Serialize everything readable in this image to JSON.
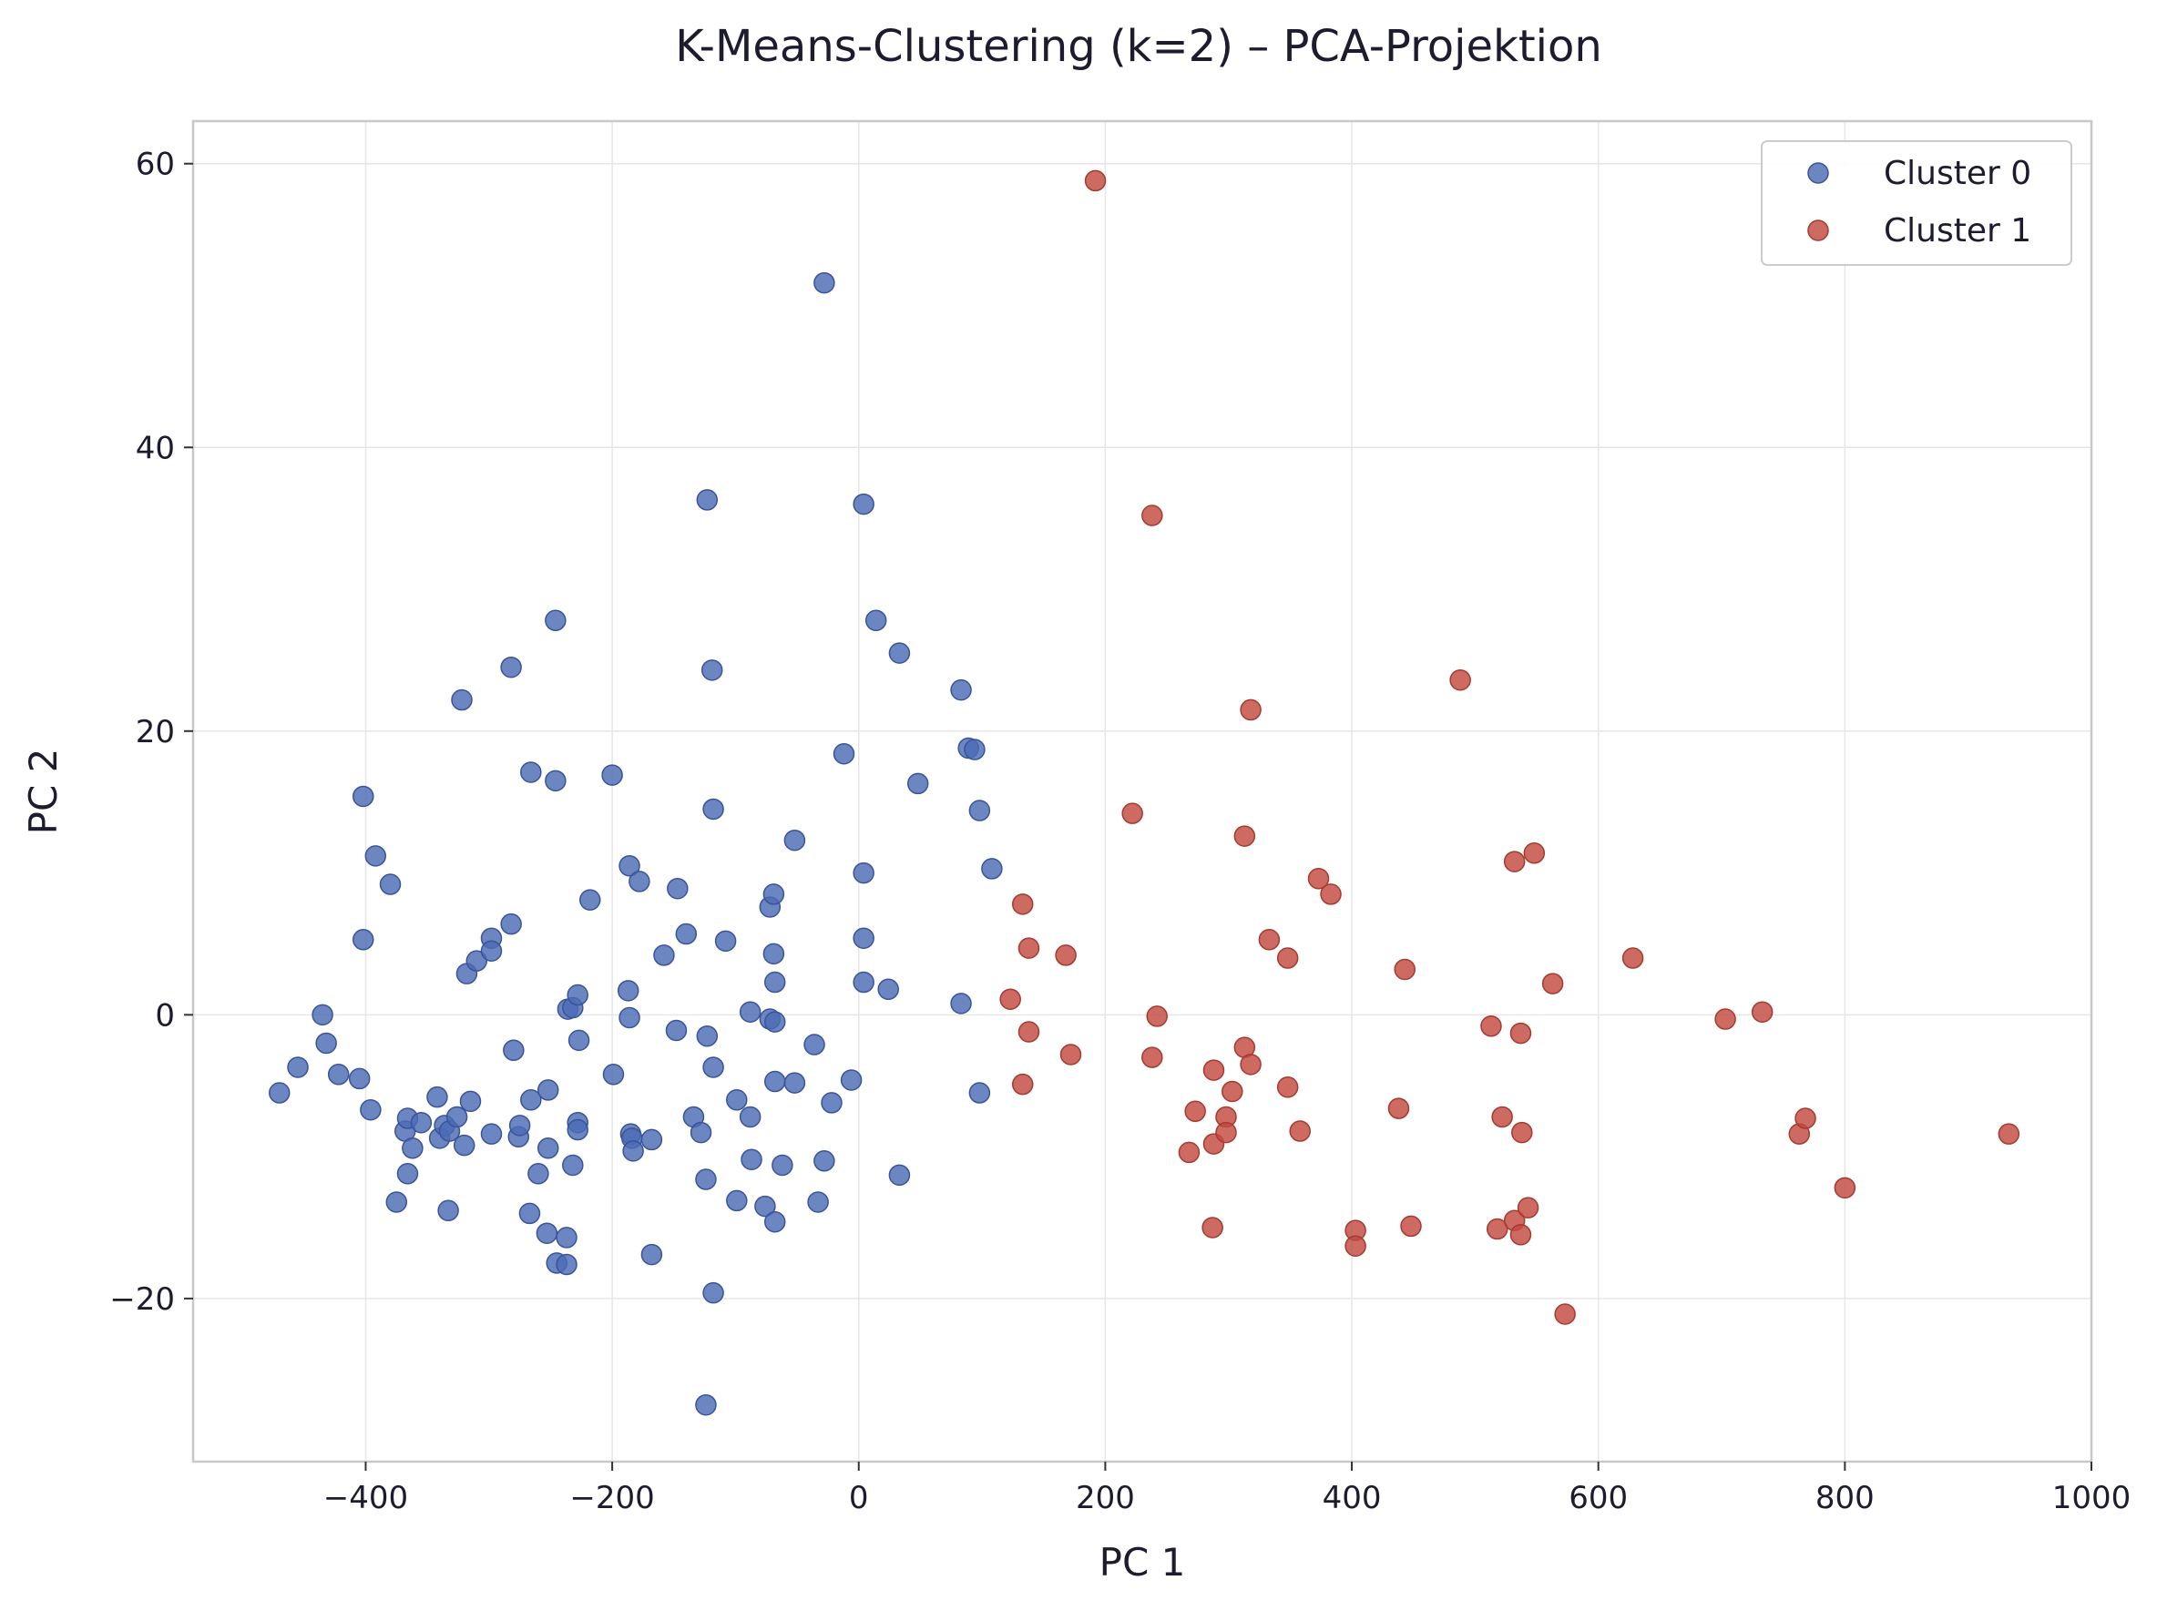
{
  "chart_data": {
    "type": "scatter",
    "title": "K-Means-Clustering (k=2) – PCA-Projektion",
    "xlabel": "PC 1",
    "ylabel": "PC 2",
    "xlim": [
      -540,
      1000
    ],
    "ylim": [
      -31.5,
      63
    ],
    "xticks": [
      -400,
      -200,
      0,
      200,
      400,
      600,
      800,
      1000
    ],
    "yticks": [
      -20,
      0,
      20,
      40,
      60
    ],
    "xtick_labels": [
      "−400",
      "−200",
      "0",
      "200",
      "400",
      "600",
      "800",
      "1000"
    ],
    "ytick_labels": [
      "−20",
      "0",
      "20",
      "40",
      "60"
    ],
    "grid": true,
    "legend_position": "top-right",
    "series": [
      {
        "name": "Cluster 0",
        "color": "#4c6bb4",
        "points": [
          [
            -470,
            -5.5
          ],
          [
            -455,
            -3.7
          ],
          [
            -435,
            0
          ],
          [
            -432,
            -2
          ],
          [
            -422,
            -4.2
          ],
          [
            -405,
            -4.5
          ],
          [
            -402,
            15.4
          ],
          [
            -402,
            5.3
          ],
          [
            -396,
            -6.7
          ],
          [
            -392,
            11.2
          ],
          [
            -380,
            9.2
          ],
          [
            -375,
            -13.2
          ],
          [
            -368,
            -8.2
          ],
          [
            -366,
            -11.2
          ],
          [
            -366,
            -7.3
          ],
          [
            -362,
            -9.4
          ],
          [
            -355,
            -7.6
          ],
          [
            -342,
            -5.8
          ],
          [
            -340,
            -8.7
          ],
          [
            -336,
            -7.8
          ],
          [
            -333,
            -13.8
          ],
          [
            -332,
            -8.2
          ],
          [
            -326,
            -7.2
          ],
          [
            -322,
            22.2
          ],
          [
            -320,
            -9.2
          ],
          [
            -318,
            2.9
          ],
          [
            -315,
            -6.1
          ],
          [
            -310,
            3.8
          ],
          [
            -298,
            5.4
          ],
          [
            -298,
            4.5
          ],
          [
            -298,
            -8.4
          ],
          [
            -282,
            6.4
          ],
          [
            -282,
            24.5
          ],
          [
            -280,
            -2.5
          ],
          [
            -276,
            -8.6
          ],
          [
            -275,
            -7.8
          ],
          [
            -267,
            -14
          ],
          [
            -266,
            -6
          ],
          [
            -266,
            17.1
          ],
          [
            -260,
            -11.2
          ],
          [
            -253,
            -15.4
          ],
          [
            -252,
            -9.4
          ],
          [
            -252,
            -5.3
          ],
          [
            -246,
            27.8
          ],
          [
            -246,
            16.5
          ],
          [
            -245,
            -17.5
          ],
          [
            -237,
            -15.7
          ],
          [
            -237,
            -17.6
          ],
          [
            -236,
            0.4
          ],
          [
            -232,
            0.5
          ],
          [
            -232,
            -10.6
          ],
          [
            -228,
            1.4
          ],
          [
            -228,
            -7.6
          ],
          [
            -228,
            -8.1
          ],
          [
            -227,
            -1.8
          ],
          [
            -218,
            8.1
          ],
          [
            -200,
            16.9
          ],
          [
            -199,
            -4.2
          ],
          [
            -187,
            1.7
          ],
          [
            -186,
            10.5
          ],
          [
            -186,
            -0.2
          ],
          [
            -185,
            -8.4
          ],
          [
            -184,
            -8.7
          ],
          [
            -183,
            -9.6
          ],
          [
            -178,
            9.4
          ],
          [
            -168,
            -8.8
          ],
          [
            -168,
            -16.9
          ],
          [
            -158,
            4.2
          ],
          [
            -148,
            -1.1
          ],
          [
            -147,
            8.9
          ],
          [
            -140,
            5.7
          ],
          [
            -134,
            -7.2
          ],
          [
            -128,
            -8.3
          ],
          [
            -123,
            36.3
          ],
          [
            -123,
            -1.5
          ],
          [
            -124,
            -11.6
          ],
          [
            -124,
            -27.5
          ],
          [
            -119,
            24.3
          ],
          [
            -118,
            14.5
          ],
          [
            -118,
            -3.7
          ],
          [
            -118,
            -19.6
          ],
          [
            -108,
            5.2
          ],
          [
            -99,
            -6
          ],
          [
            -99,
            -13.1
          ],
          [
            -88,
            0.2
          ],
          [
            -88,
            -7.2
          ],
          [
            -87,
            -10.2
          ],
          [
            -76,
            -13.5
          ],
          [
            -72,
            -0.3
          ],
          [
            -72,
            7.6
          ],
          [
            -69,
            8.5
          ],
          [
            -69,
            4.3
          ],
          [
            -68,
            -0.5
          ],
          [
            -68,
            2.3
          ],
          [
            -68,
            -4.7
          ],
          [
            -68,
            -14.6
          ],
          [
            -62,
            -10.6
          ],
          [
            -52,
            12.3
          ],
          [
            -52,
            -4.8
          ],
          [
            -36,
            -2.1
          ],
          [
            -33,
            -13.2
          ],
          [
            -28,
            51.6
          ],
          [
            -28,
            -10.3
          ],
          [
            -22,
            -6.2
          ],
          [
            -12,
            18.4
          ],
          [
            -6,
            -4.6
          ],
          [
            4,
            36
          ],
          [
            4,
            10
          ],
          [
            4,
            5.4
          ],
          [
            4,
            2.3
          ],
          [
            14,
            27.8
          ],
          [
            24,
            1.8
          ],
          [
            33,
            25.5
          ],
          [
            33,
            -11.3
          ],
          [
            48,
            16.3
          ],
          [
            83,
            0.8
          ],
          [
            83,
            22.9
          ],
          [
            89,
            18.8
          ],
          [
            94,
            18.7
          ],
          [
            98,
            14.4
          ],
          [
            98,
            -5.5
          ],
          [
            108,
            10.3
          ]
        ]
      },
      {
        "name": "Cluster 1",
        "color": "#c24a3f",
        "points": [
          [
            123,
            1.1
          ],
          [
            133,
            -4.9
          ],
          [
            133,
            7.8
          ],
          [
            138,
            4.7
          ],
          [
            138,
            -1.2
          ],
          [
            168,
            4.2
          ],
          [
            172,
            -2.8
          ],
          [
            192,
            58.8
          ],
          [
            222,
            14.2
          ],
          [
            238,
            35.2
          ],
          [
            238,
            -3
          ],
          [
            242,
            -0.1
          ],
          [
            268,
            -9.7
          ],
          [
            273,
            -6.8
          ],
          [
            287,
            -15
          ],
          [
            288,
            -3.9
          ],
          [
            288,
            -9.1
          ],
          [
            298,
            -7.2
          ],
          [
            298,
            -8.3
          ],
          [
            303,
            -5.4
          ],
          [
            313,
            -2.3
          ],
          [
            313,
            12.6
          ],
          [
            318,
            -3.5
          ],
          [
            318,
            21.5
          ],
          [
            333,
            5.3
          ],
          [
            348,
            4
          ],
          [
            348,
            -5.1
          ],
          [
            358,
            -8.2
          ],
          [
            373,
            9.6
          ],
          [
            383,
            8.5
          ],
          [
            403,
            -15.2
          ],
          [
            403,
            -16.3
          ],
          [
            438,
            -6.6
          ],
          [
            443,
            3.2
          ],
          [
            448,
            -14.9
          ],
          [
            488,
            23.6
          ],
          [
            513,
            -0.8
          ],
          [
            518,
            -15.1
          ],
          [
            522,
            -7.2
          ],
          [
            532,
            10.8
          ],
          [
            532,
            -14.5
          ],
          [
            537,
            -1.3
          ],
          [
            537,
            -15.5
          ],
          [
            538,
            -8.3
          ],
          [
            543,
            -13.6
          ],
          [
            548,
            11.4
          ],
          [
            563,
            2.2
          ],
          [
            573,
            -21.1
          ],
          [
            628,
            4
          ],
          [
            703,
            -0.3
          ],
          [
            733,
            0.2
          ],
          [
            763,
            -8.4
          ],
          [
            768,
            -7.3
          ],
          [
            800,
            -12.2
          ],
          [
            933,
            -8.4
          ]
        ]
      }
    ]
  }
}
